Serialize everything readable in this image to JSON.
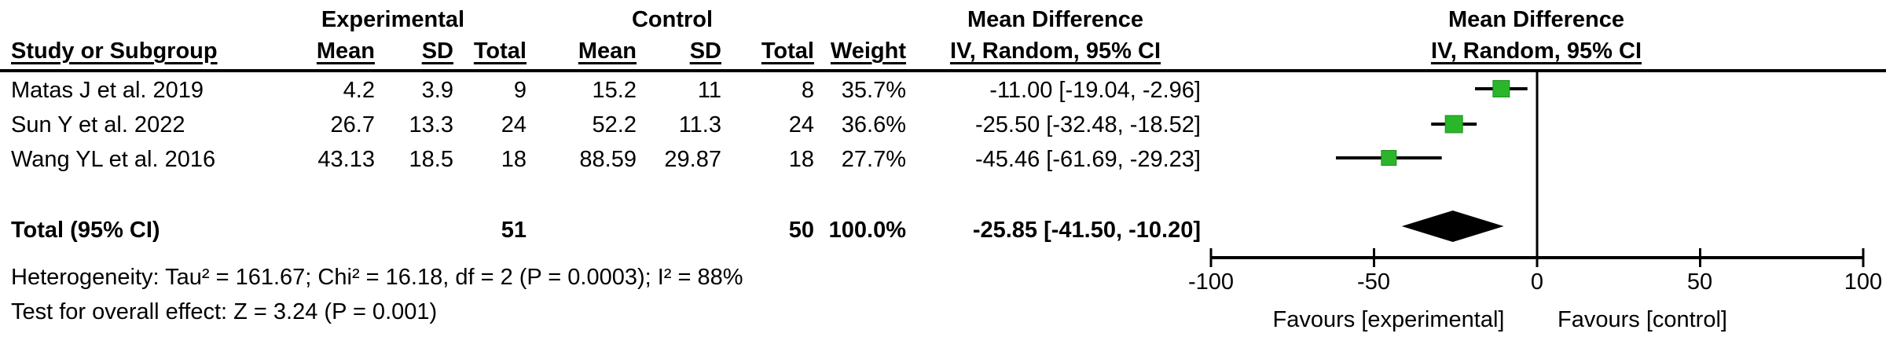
{
  "colors": {
    "square_green": "#2bb52b",
    "square_border": "#1d8f1d",
    "ink_black": "#000000"
  },
  "header": {
    "group_experimental": "Experimental",
    "group_control": "Control",
    "md_left_line1": "Mean Difference",
    "md_right_line1": "Mean Difference",
    "col_study": "Study or Subgroup",
    "col_mean_exp": "Mean",
    "col_sd_exp": "SD",
    "col_total_exp": "Total",
    "col_mean_ctl": "Mean",
    "col_sd_ctl": "SD",
    "col_total_ctl": "Total",
    "col_weight": "Weight",
    "col_ci_left": "IV, Random, 95% CI",
    "col_ci_right": "IV, Random, 95% CI"
  },
  "rows": [
    {
      "study": "Matas J et al. 2019",
      "exp_mean": "4.2",
      "exp_sd": "3.9",
      "exp_total": "9",
      "ctrl_mean": "15.2",
      "ctrl_sd": "11",
      "ctrl_total": "8",
      "weight": "35.7%",
      "ci": "-11.00 [-19.04, -2.96]"
    },
    {
      "study": "Sun Y et al. 2022",
      "exp_mean": "26.7",
      "exp_sd": "13.3",
      "exp_total": "24",
      "ctrl_mean": "52.2",
      "ctrl_sd": "11.3",
      "ctrl_total": "24",
      "weight": "36.6%",
      "ci": "-25.50 [-32.48, -18.52]"
    },
    {
      "study": "Wang YL et al. 2016",
      "exp_mean": "43.13",
      "exp_sd": "18.5",
      "exp_total": "18",
      "ctrl_mean": "88.59",
      "ctrl_sd": "29.87",
      "ctrl_total": "18",
      "weight": "27.7%",
      "ci": "-45.46 [-61.69, -29.23]"
    }
  ],
  "total_row": {
    "label": "Total (95% CI)",
    "exp_total": "51",
    "ctrl_total": "50",
    "weight": "100.0%",
    "ci": "-25.85 [-41.50, -10.20]"
  },
  "footer": {
    "heterogeneity": "Heterogeneity: Tau² = 161.67; Chi² = 16.18, df = 2 (P = 0.0003); I² = 88%",
    "overall_effect": "Test for overall effect: Z = 3.24 (P = 0.001)"
  },
  "axis": {
    "tick_labels": [
      "-100",
      "-50",
      "0",
      "50",
      "100"
    ],
    "favours_left": "Favours [experimental]",
    "favours_right": "Favours [control]"
  },
  "chart_data": {
    "type": "forest",
    "effect_measure": "Mean Difference, IV, Random, 95% CI",
    "studies": [
      {
        "label": "Matas J et al. 2019",
        "exp_mean": 4.2,
        "exp_sd": 3.9,
        "exp_total": 9,
        "ctrl_mean": 15.2,
        "ctrl_sd": 11,
        "ctrl_total": 8,
        "weight_pct": 35.7,
        "md": -11.0,
        "ci_low": -19.04,
        "ci_high": -2.96
      },
      {
        "label": "Sun Y et al. 2022",
        "exp_mean": 26.7,
        "exp_sd": 13.3,
        "exp_total": 24,
        "ctrl_mean": 52.2,
        "ctrl_sd": 11.3,
        "ctrl_total": 24,
        "weight_pct": 36.6,
        "md": -25.5,
        "ci_low": -32.48,
        "ci_high": -18.52
      },
      {
        "label": "Wang YL et al. 2016",
        "exp_mean": 43.13,
        "exp_sd": 18.5,
        "exp_total": 18,
        "ctrl_mean": 88.59,
        "ctrl_sd": 29.87,
        "ctrl_total": 18,
        "weight_pct": 27.7,
        "md": -45.46,
        "ci_low": -61.69,
        "ci_high": -29.23
      }
    ],
    "total": {
      "exp_total": 51,
      "ctrl_total": 50,
      "weight_pct": 100.0,
      "md": -25.85,
      "ci_low": -41.5,
      "ci_high": -10.2
    },
    "heterogeneity": {
      "tau2": 161.67,
      "chi2": 16.18,
      "df": 2,
      "p": 0.0003,
      "i2_pct": 88
    },
    "overall_effect": {
      "z": 3.24,
      "p": 0.001
    },
    "axis": {
      "min": -100,
      "max": 100,
      "ticks": [
        -100,
        -50,
        0,
        50,
        100
      ]
    }
  }
}
